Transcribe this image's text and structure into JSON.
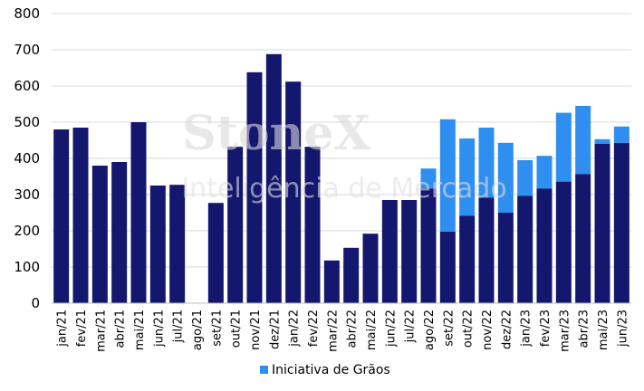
{
  "watermark": {
    "logo": "StoneX",
    "subtitle": "Inteligência de Mercado"
  },
  "colors": {
    "base": "#14176e",
    "iniciativa": "#2f8ff0",
    "grid": "#d9d9d9"
  },
  "chart_data": {
    "type": "bar",
    "stacked": true,
    "title": "",
    "xlabel": "",
    "ylabel": "",
    "ylim": [
      0,
      800
    ],
    "yticks": [
      0,
      100,
      200,
      300,
      400,
      500,
      600,
      700,
      800
    ],
    "grid": true,
    "legend_position": "bottom",
    "categories": [
      "jan/21",
      "fev/21",
      "mar/21",
      "abr/21",
      "mai/21",
      "jun/21",
      "jul/21",
      "ago/21",
      "set/21",
      "out/21",
      "nov/21",
      "dez/21",
      "jan/22",
      "fev/22",
      "mar/22",
      "abr/22",
      "mai/22",
      "jun/22",
      "jul/22",
      "ago/22",
      "set/22",
      "out/22",
      "nov/22",
      "dez/22",
      "jan/23",
      "fev/23",
      "mar/23",
      "abr/23",
      "mai/23",
      "jun/23"
    ],
    "series": [
      {
        "values": [
          480,
          485,
          380,
          390,
          500,
          325,
          327,
          0,
          277,
          432,
          638,
          688,
          612,
          432,
          118,
          153,
          192,
          285,
          285,
          317,
          198,
          242,
          292,
          250,
          297,
          317,
          336,
          357,
          440,
          443
        ]
      },
      {
        "name": "Iniciativa de Grãos",
        "values": [
          0,
          0,
          0,
          0,
          0,
          0,
          0,
          0,
          0,
          0,
          0,
          0,
          0,
          0,
          0,
          0,
          0,
          0,
          0,
          55,
          310,
          213,
          193,
          193,
          98,
          90,
          190,
          188,
          13,
          45
        ]
      }
    ]
  }
}
